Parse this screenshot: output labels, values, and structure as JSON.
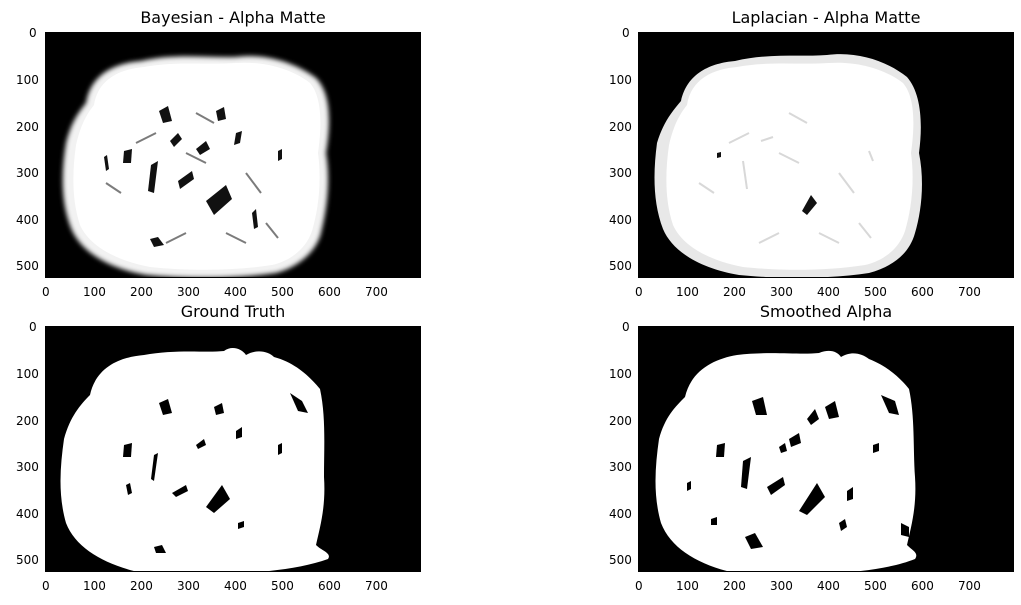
{
  "panels": [
    {
      "id": "bayesian",
      "title": "Bayesian - Alpha Matte",
      "x_ticks": [
        "0",
        "100",
        "200",
        "300",
        "400",
        "500",
        "600",
        "700"
      ],
      "y_ticks": [
        "0",
        "100",
        "200",
        "300",
        "400",
        "500"
      ],
      "x_range": [
        0,
        800
      ],
      "y_range": [
        0,
        525
      ]
    },
    {
      "id": "laplacian",
      "title": "Laplacian - Alpha Matte",
      "x_ticks": [
        "0",
        "100",
        "200",
        "300",
        "400",
        "500",
        "600",
        "700"
      ],
      "y_ticks": [
        "0",
        "100",
        "200",
        "300",
        "400",
        "500"
      ],
      "x_range": [
        0,
        800
      ],
      "y_range": [
        0,
        525
      ]
    },
    {
      "id": "ground-truth",
      "title": "Ground Truth",
      "x_ticks": [
        "0",
        "100",
        "200",
        "300",
        "400",
        "500",
        "600",
        "700"
      ],
      "y_ticks": [
        "0",
        "100",
        "200",
        "300",
        "400",
        "500"
      ],
      "x_range": [
        0,
        800
      ],
      "y_range": [
        0,
        525
      ]
    },
    {
      "id": "smoothed",
      "title": "Smoothed Alpha",
      "x_ticks": [
        "0",
        "100",
        "200",
        "300",
        "400",
        "500",
        "600",
        "700"
      ],
      "y_ticks": [
        "0",
        "100",
        "200",
        "300",
        "400",
        "500"
      ],
      "x_range": [
        0,
        800
      ],
      "y_range": [
        0,
        525
      ]
    }
  ]
}
